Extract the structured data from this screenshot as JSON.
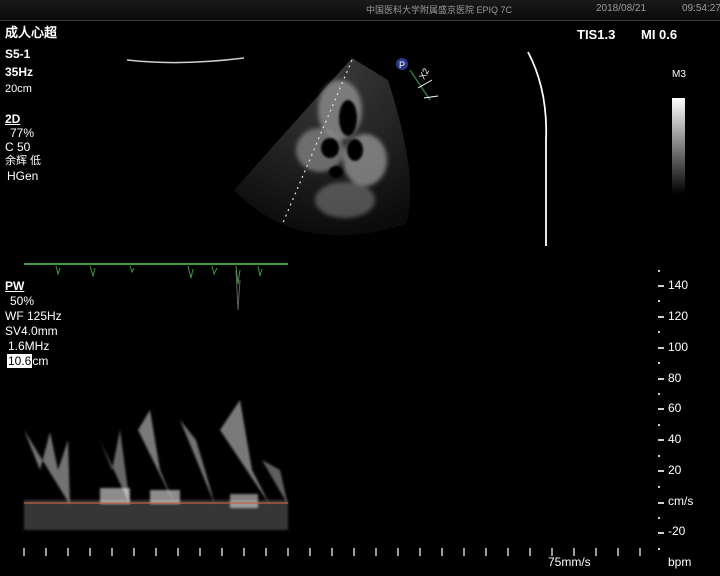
{
  "header": {
    "hospital": "中国医科大学附属盛京医院  EPIQ 7C",
    "date": "2018/08/21",
    "time": "09:54:27"
  },
  "preset": "成人心超",
  "probe": "S5-1",
  "frame_rate": "35Hz",
  "depth": "20cm",
  "indices": {
    "tis": "TIS1.3",
    "mi": "MI 0.6"
  },
  "map_label": "M3",
  "mode_2d": {
    "title": "2D",
    "gain": "77%",
    "compression": "C 50",
    "persistence": "余辉 低",
    "frequency": "HGen"
  },
  "mode_pw": {
    "title": "PW",
    "gain": "50%",
    "wall_filter": "WF 125Hz",
    "sample_volume": "SV4.0mm",
    "frequency": "1.6MHz",
    "depth_value": "10.6",
    "depth_unit": "cm"
  },
  "doppler_scale": {
    "labels": [
      "140",
      "120",
      "100",
      "80",
      "60",
      "40",
      "20",
      "cm/s",
      "-20"
    ],
    "unit": "cm/s"
  },
  "sweep_speed": "75mm/s",
  "hr_unit": "bpm",
  "probe_marker": "P",
  "marker_text": "X2",
  "colors": {
    "background": "#000000",
    "text": "#ffffff",
    "ecg": "#3c9a3c",
    "baseline": "#c06040"
  }
}
